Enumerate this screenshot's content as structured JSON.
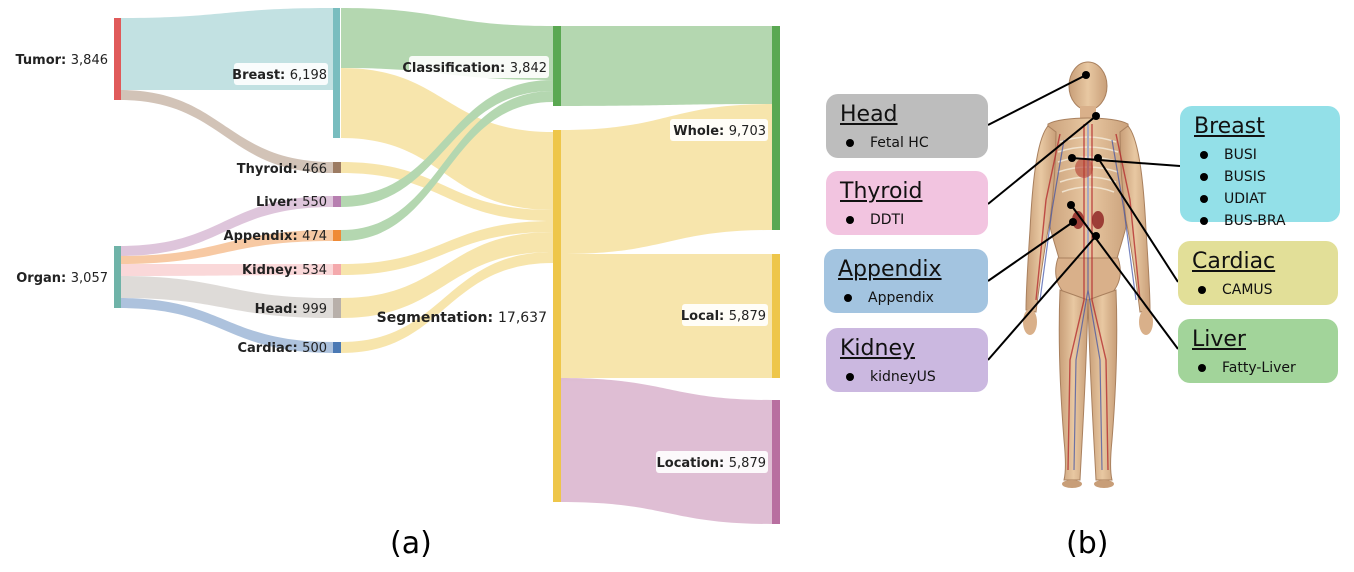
{
  "panel_a": {
    "letter": "(a)",
    "nodes": {
      "tumor": {
        "name": "Tumor",
        "value": "3,846"
      },
      "organ": {
        "name": "Organ",
        "value": "3,057"
      },
      "breast": {
        "name": "Breast",
        "value": "6,198"
      },
      "thyroid": {
        "name": "Thyroid",
        "value": "466"
      },
      "liver": {
        "name": "Liver",
        "value": "550"
      },
      "appendix": {
        "name": "Appendix",
        "value": "474"
      },
      "kidney": {
        "name": "Kidney",
        "value": "534"
      },
      "head": {
        "name": "Head",
        "value": "999"
      },
      "cardiac": {
        "name": "Cardiac",
        "value": "500"
      },
      "classification": {
        "name": "Classification",
        "value": "3,842"
      },
      "segmentation": {
        "name": "Segmentation",
        "value": "17,637"
      },
      "whole": {
        "name": "Whole",
        "value": "9,703"
      },
      "local": {
        "name": "Local",
        "value": "5,879"
      },
      "location": {
        "name": "Location",
        "value": "5,879"
      }
    },
    "colors": {
      "tumor": "#e05a5a",
      "organ": "#6fb3a8",
      "breast": "#79bdbf",
      "thyroid": "#9c7b62",
      "liver": "#b77fb0",
      "appendix": "#ef8a36",
      "kidney": "#f4a9ac",
      "head": "#b8b0aa",
      "cardiac": "#4b79b4",
      "classification": "#5aa852",
      "segmentation": "#eec64a",
      "whole": "#5aa852",
      "local": "#eec64a",
      "location": "#b86fa0"
    }
  },
  "panel_b": {
    "letter": "(b)",
    "cards": [
      {
        "id": "head",
        "title": "Head",
        "items": [
          "Fetal HC"
        ],
        "color": "#bdbdbd"
      },
      {
        "id": "thyroid",
        "title": "Thyroid",
        "items": [
          "DDTI"
        ],
        "color": "#f2c4e0"
      },
      {
        "id": "appendix",
        "title": "Appendix",
        "items": [
          "Appendix"
        ],
        "color": "#a3c4e0"
      },
      {
        "id": "kidney",
        "title": "Kidney",
        "items": [
          "kidneyUS"
        ],
        "color": "#cbb8e0"
      },
      {
        "id": "breast",
        "title": "Breast",
        "items": [
          "BUSI",
          "BUSIS",
          "UDIAT",
          "BUS-BRA"
        ],
        "color": "#93e0e8"
      },
      {
        "id": "cardiac",
        "title": "Cardiac",
        "items": [
          "CAMUS"
        ],
        "color": "#e2df98"
      },
      {
        "id": "liver",
        "title": "Liver",
        "items": [
          "Fatty-Liver"
        ],
        "color": "#a2d49a"
      }
    ]
  }
}
